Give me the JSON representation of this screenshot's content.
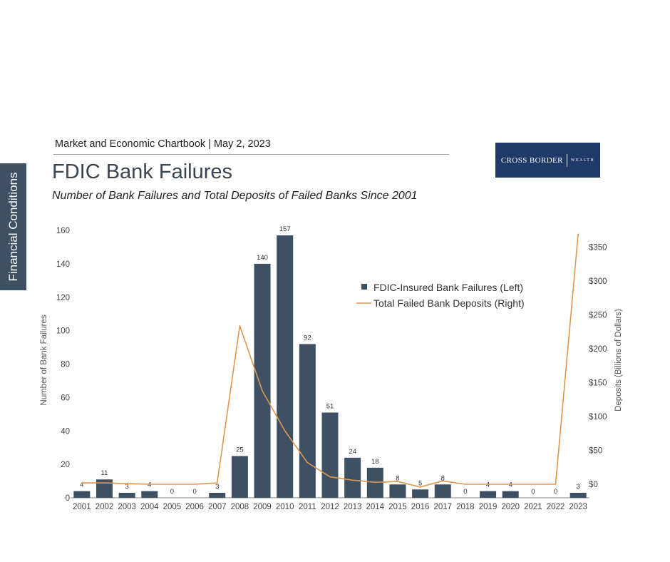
{
  "side_tab": {
    "label": "Financial Conditions"
  },
  "header": {
    "source_line": "Market and Economic Chartbook | May 2, 2023",
    "title": "FDIC Bank Failures",
    "subtitle": "Number of Bank Failures and Total Deposits of Failed Banks Since 2001"
  },
  "logo": {
    "main": "CROSS BORDER",
    "sub": "WEALTH",
    "bg_color": "#1f3a68"
  },
  "colors": {
    "bar": "#3e5063",
    "line": "#e0964f",
    "side_tab": "#3e5063"
  },
  "chart_data": {
    "type": "bar",
    "categories": [
      "2001",
      "2002",
      "2003",
      "2004",
      "2005",
      "2006",
      "2007",
      "2008",
      "2009",
      "2010",
      "2011",
      "2012",
      "2013",
      "2014",
      "2015",
      "2016",
      "2017",
      "2018",
      "2019",
      "2020",
      "2021",
      "2022",
      "2023"
    ],
    "series": [
      {
        "name": "FDIC-Insured Bank Failures (Left)",
        "type": "bar",
        "axis": "left",
        "values": [
          4,
          11,
          3,
          4,
          0,
          0,
          3,
          25,
          140,
          157,
          92,
          51,
          24,
          18,
          8,
          5,
          8,
          0,
          4,
          4,
          0,
          0,
          3
        ]
      },
      {
        "name": "Total Failed Bank Deposits (Right)",
        "type": "line",
        "axis": "right",
        "values": [
          2,
          2,
          1,
          0,
          0,
          0,
          2,
          234,
          138,
          79,
          32,
          11,
          6,
          3,
          4,
          -4,
          5,
          0,
          0,
          0,
          0,
          0,
          370
        ]
      }
    ],
    "ylabel": "Number of Bank Failures",
    "y2label": "Deposits (Billions of Dollars)",
    "ylim": [
      0,
      160
    ],
    "yticks": [
      "0",
      "20",
      "40",
      "60",
      "80",
      "100",
      "120",
      "140",
      "160"
    ],
    "y2lim": [
      -20,
      375
    ],
    "y2ticks": [
      "$0",
      "$50",
      "$100",
      "$150",
      "$200",
      "$250",
      "$300",
      "$350"
    ],
    "y2tick_values": [
      0,
      50,
      100,
      150,
      200,
      250,
      300,
      350
    ],
    "grid": false,
    "legend_position": "upper-right"
  }
}
